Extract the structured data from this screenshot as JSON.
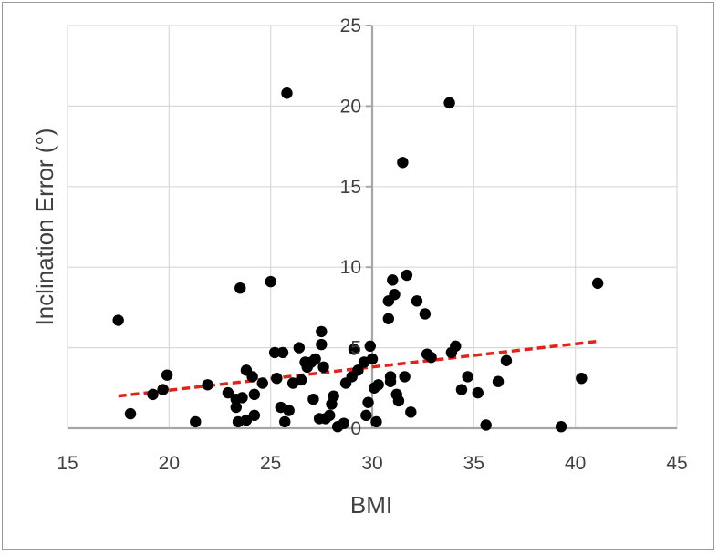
{
  "chart_data": {
    "type": "scatter",
    "title": "",
    "xlabel": "BMI",
    "ylabel": "Inclination Error (°)",
    "xlim": [
      15,
      45
    ],
    "ylim": [
      0,
      25
    ],
    "xticks": [
      15,
      20,
      25,
      30,
      35,
      40,
      45
    ],
    "yticks": [
      0,
      5,
      10,
      15,
      20,
      25
    ],
    "grid": true,
    "colors": {
      "points": "#000000",
      "trendline": "#e3231b",
      "grid": "#d9d9d9",
      "axis": "#a6a6a6"
    },
    "series": [
      {
        "points": [
          [
            17.5,
            6.7
          ],
          [
            18.1,
            0.9
          ],
          [
            19.2,
            2.1
          ],
          [
            19.7,
            2.4
          ],
          [
            19.9,
            3.3
          ],
          [
            21.3,
            0.4
          ],
          [
            21.9,
            2.7
          ],
          [
            22.9,
            2.2
          ],
          [
            23.3,
            1.8
          ],
          [
            23.3,
            1.3
          ],
          [
            23.4,
            0.4
          ],
          [
            23.5,
            8.7
          ],
          [
            23.6,
            1.9
          ],
          [
            23.8,
            3.6
          ],
          [
            23.8,
            0.5
          ],
          [
            24.1,
            3.2
          ],
          [
            24.2,
            0.8
          ],
          [
            24.2,
            2.1
          ],
          [
            24.6,
            2.8
          ],
          [
            25.0,
            9.1
          ],
          [
            25.2,
            4.7
          ],
          [
            25.3,
            3.1
          ],
          [
            25.5,
            1.3
          ],
          [
            25.6,
            4.7
          ],
          [
            25.7,
            0.4
          ],
          [
            25.8,
            20.8
          ],
          [
            25.9,
            1.1
          ],
          [
            26.1,
            2.8
          ],
          [
            26.4,
            5.0
          ],
          [
            26.5,
            3.0
          ],
          [
            26.7,
            4.1
          ],
          [
            26.8,
            3.8
          ],
          [
            27.0,
            4.1
          ],
          [
            27.1,
            1.8
          ],
          [
            27.2,
            4.3
          ],
          [
            27.4,
            0.6
          ],
          [
            27.5,
            5.2
          ],
          [
            27.5,
            6.0
          ],
          [
            27.6,
            3.8
          ],
          [
            27.7,
            0.6
          ],
          [
            27.9,
            0.8
          ],
          [
            28.0,
            1.5
          ],
          [
            28.1,
            2.0
          ],
          [
            28.3,
            0.1
          ],
          [
            28.6,
            0.3
          ],
          [
            28.7,
            2.8
          ],
          [
            29.0,
            3.2
          ],
          [
            29.1,
            4.9
          ],
          [
            29.3,
            3.6
          ],
          [
            29.6,
            4.1
          ],
          [
            29.7,
            0.8
          ],
          [
            29.8,
            1.6
          ],
          [
            29.9,
            5.1
          ],
          [
            30.0,
            4.3
          ],
          [
            30.1,
            2.5
          ],
          [
            30.2,
            0.4
          ],
          [
            30.3,
            2.7
          ],
          [
            30.8,
            6.8
          ],
          [
            30.8,
            7.9
          ],
          [
            30.9,
            3.2
          ],
          [
            30.9,
            2.9
          ],
          [
            31.0,
            9.2
          ],
          [
            31.1,
            8.3
          ],
          [
            31.2,
            2.1
          ],
          [
            31.3,
            1.7
          ],
          [
            31.5,
            16.5
          ],
          [
            31.6,
            3.2
          ],
          [
            31.7,
            9.5
          ],
          [
            31.9,
            1.0
          ],
          [
            32.2,
            7.9
          ],
          [
            32.6,
            7.1
          ],
          [
            32.7,
            4.6
          ],
          [
            32.9,
            4.4
          ],
          [
            33.8,
            20.2
          ],
          [
            33.9,
            4.7
          ],
          [
            34.1,
            5.1
          ],
          [
            34.4,
            2.4
          ],
          [
            34.7,
            3.2
          ],
          [
            35.2,
            2.2
          ],
          [
            35.6,
            0.2
          ],
          [
            36.2,
            2.9
          ],
          [
            36.6,
            4.2
          ],
          [
            39.3,
            0.1
          ],
          [
            40.3,
            3.1
          ],
          [
            41.1,
            9.0
          ]
        ]
      }
    ],
    "trendline": {
      "style": "dashed",
      "x": [
        17.5,
        41.1
      ],
      "y": [
        2.0,
        5.4
      ]
    }
  }
}
